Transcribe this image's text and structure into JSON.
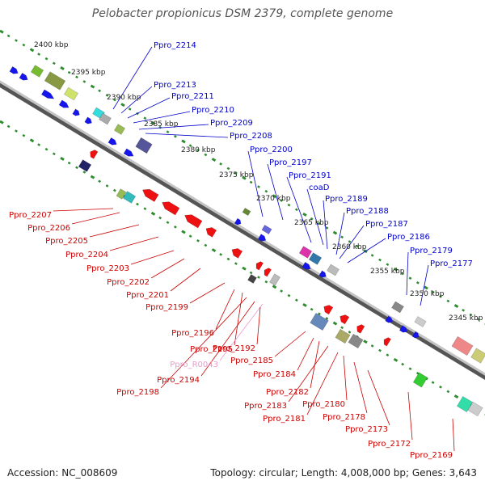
{
  "title": "Pelobacter propionicus DSM 2379, complete genome",
  "accession": "Accession: NC_008609",
  "summary": "Topology: circular; Length: 4,008,000 bp; Genes: 3,643",
  "colors": {
    "forward_label": "#0000cc",
    "reverse_label": "#cc0000",
    "rna_label": "#ee99cc",
    "tick": "#2e8b2e",
    "backbone": "#888888"
  },
  "kbp_labels": [
    "2400 kbp",
    "2395 kbp",
    "2390 kbp",
    "2385 kbp",
    "2380 kbp",
    "2375 kbp",
    "2370 kbp",
    "2365 kbp",
    "2360 kbp",
    "2355 kbp",
    "2350 kbp",
    "2345 kbp"
  ],
  "forward_genes": [
    "Ppro_2214",
    "Ppro_2213",
    "Ppro_2211",
    "Ppro_2210",
    "Ppro_2209",
    "Ppro_2208",
    "Ppro_2200",
    "Ppro_2197",
    "Ppro_2191",
    "coaD",
    "Ppro_2189",
    "Ppro_2188",
    "Ppro_2187",
    "Ppro_2186",
    "Ppro_2179",
    "Ppro_2177"
  ],
  "reverse_genes": [
    "Ppro_2207",
    "Ppro_2206",
    "Ppro_2205",
    "Ppro_2204",
    "Ppro_2203",
    "Ppro_2202",
    "Ppro_2201",
    "Ppro_2199",
    "Ppro_2196",
    "Ppro_2195",
    "Ppro_R0043",
    "Ppro_2194",
    "Ppro_2198",
    "Ppro_2192",
    "Ppro_2185",
    "Ppro_2184",
    "Ppro_2182",
    "Ppro_2183",
    "Ppro_2181",
    "Ppro_2180",
    "Ppro_2178",
    "Ppro_2173",
    "Ppro_2172",
    "Ppro_2169"
  ]
}
